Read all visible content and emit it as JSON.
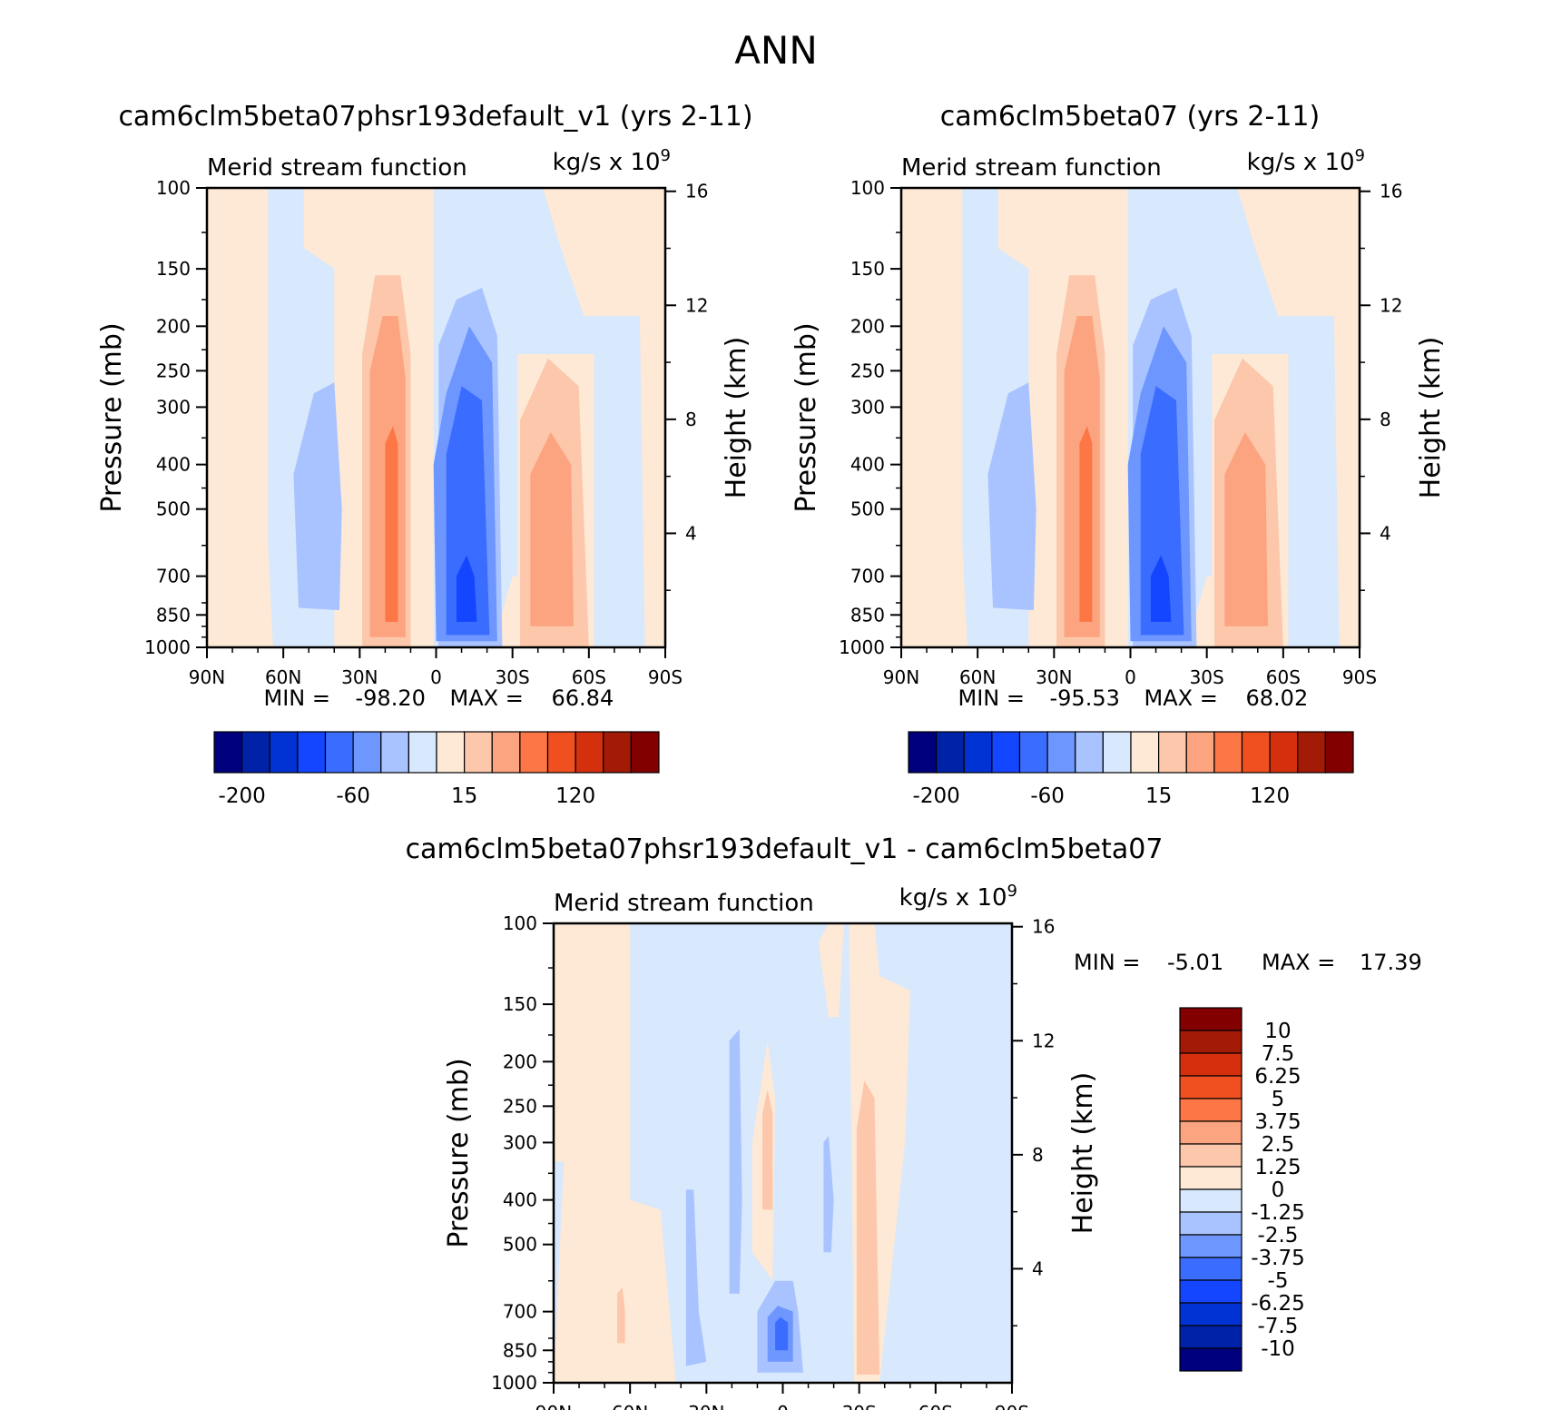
{
  "figure_title": "ANN",
  "colors": {
    "palette": [
      "#00007f",
      "#0022a8",
      "#0032d4",
      "#1446ff",
      "#3a6cff",
      "#6d97ff",
      "#a8c3ff",
      "#d8e8fd",
      "#fde9d6",
      "#fcc7aa",
      "#fca47f",
      "#fc7646",
      "#f04f1f",
      "#d4300e",
      "#a31a06",
      "#820000"
    ],
    "frame": "#000000"
  },
  "panels": [
    {
      "id": "top-left",
      "case_title": "cam6clm5beta07phsr193default_v1 (yrs 2-11)",
      "left_label": "Merid stream function",
      "units": "kg/s x 10",
      "units_exp": "9",
      "min_label": "MIN =",
      "min_value": "-98.20",
      "max_label": "MAX =",
      "max_value": "66.84"
    },
    {
      "id": "top-right",
      "case_title": "cam6clm5beta07 (yrs 2-11)",
      "left_label": "Merid stream function",
      "units": "kg/s x 10",
      "units_exp": "9",
      "min_label": "MIN =",
      "min_value": "-95.53",
      "max_label": "MAX =",
      "max_value": "68.02"
    },
    {
      "id": "bottom",
      "case_title": "cam6clm5beta07phsr193default_v1 - cam6clm5beta07",
      "left_label": "Merid stream function",
      "units": "kg/s x 10",
      "units_exp": "9",
      "min_label": "MIN =",
      "min_value": "-5.01",
      "max_label": "MAX =",
      "max_value": "17.39"
    }
  ],
  "axes": {
    "ylabel_left": "Pressure (mb)",
    "ylabel_right": "Height (km)",
    "pressure_ticks": [
      "100",
      "150",
      "200",
      "250",
      "300",
      "400",
      "500",
      "700",
      "850",
      "1000"
    ],
    "pressure_values": [
      100,
      150,
      200,
      250,
      300,
      400,
      500,
      700,
      850,
      1000
    ],
    "height_ticks": [
      "16",
      "12",
      "8",
      "4"
    ],
    "height_values": [
      16,
      12,
      8,
      4
    ],
    "lat_ticks": [
      "90N",
      "60N",
      "30N",
      "0",
      "30S",
      "60S",
      "90S"
    ],
    "lat_values": [
      90,
      60,
      30,
      0,
      -30,
      -60,
      -90
    ]
  },
  "top_colorbar_labels": [
    "-200",
    "-60",
    "15",
    "120"
  ],
  "bottom_colorbar_labels": [
    "10",
    "7.5",
    "6.25",
    "5",
    "3.75",
    "2.5",
    "1.25",
    "0",
    "-1.25",
    "-2.5",
    "-3.75",
    "-5",
    "-6.25",
    "-7.5",
    "-10"
  ],
  "chart_data": [
    {
      "type": "heatmap",
      "title": "cam6clm5beta07phsr193default_v1 (yrs 2-11)",
      "xlabel": "",
      "ylabel": "Pressure (mb)",
      "ylabel_right": "Height (km)",
      "xlim": [
        90,
        -90
      ],
      "ylim": [
        1000,
        100
      ],
      "yscale": "log",
      "contour_levels": [
        -200,
        -150,
        -100,
        -60,
        -40,
        -20,
        -5,
        0,
        5,
        15,
        40,
        60,
        80,
        120,
        150,
        200
      ],
      "features": [
        {
          "name": "ferrel-cell-north",
          "sign": "negative",
          "lat_range": [
            60,
            35
          ],
          "p_range": [
            850,
            260
          ],
          "peak": -25
        },
        {
          "name": "hadley-cell-north",
          "sign": "positive",
          "lat_range": [
            30,
            8
          ],
          "p_range": [
            1000,
            150
          ],
          "peak": 66.84
        },
        {
          "name": "hadley-cell-south",
          "sign": "negative",
          "lat_range": [
            0,
            -30
          ],
          "p_range": [
            1000,
            150
          ],
          "peak": -98.2
        },
        {
          "name": "ferrel-cell-south",
          "sign": "positive",
          "lat_range": [
            -32,
            -60
          ],
          "p_range": [
            1000,
            240
          ],
          "peak": 45
        }
      ],
      "min": -98.2,
      "max": 66.84
    },
    {
      "type": "heatmap",
      "title": "cam6clm5beta07 (yrs 2-11)",
      "xlabel": "",
      "ylabel": "Pressure (mb)",
      "ylabel_right": "Height (km)",
      "xlim": [
        90,
        -90
      ],
      "ylim": [
        1000,
        100
      ],
      "yscale": "log",
      "contour_levels": [
        -200,
        -150,
        -100,
        -60,
        -40,
        -20,
        -5,
        0,
        5,
        15,
        40,
        60,
        80,
        120,
        150,
        200
      ],
      "features": [
        {
          "name": "ferrel-cell-north",
          "sign": "negative",
          "lat_range": [
            60,
            35
          ],
          "p_range": [
            850,
            260
          ],
          "peak": -25
        },
        {
          "name": "hadley-cell-north",
          "sign": "positive",
          "lat_range": [
            30,
            8
          ],
          "p_range": [
            1000,
            150
          ],
          "peak": 68.02
        },
        {
          "name": "hadley-cell-south",
          "sign": "negative",
          "lat_range": [
            0,
            -30
          ],
          "p_range": [
            1000,
            150
          ],
          "peak": -95.53
        },
        {
          "name": "ferrel-cell-south",
          "sign": "positive",
          "lat_range": [
            -32,
            -60
          ],
          "p_range": [
            1000,
            240
          ],
          "peak": 45
        }
      ],
      "min": -95.53,
      "max": 68.02
    },
    {
      "type": "heatmap",
      "title": "cam6clm5beta07phsr193default_v1 - cam6clm5beta07",
      "xlabel": "",
      "ylabel": "Pressure (mb)",
      "ylabel_right": "Height (km)",
      "xlim": [
        90,
        -90
      ],
      "ylim": [
        1000,
        100
      ],
      "yscale": "log",
      "contour_levels": [
        -10,
        -7.5,
        -6.25,
        -5,
        -3.75,
        -2.5,
        -1.25,
        0,
        1.25,
        2.5,
        3.75,
        5,
        6.25,
        7.5,
        10
      ],
      "features": [
        {
          "name": "diff-negative-core",
          "sign": "negative",
          "lat_range": [
            5,
            -8
          ],
          "p_range": [
            850,
            600
          ],
          "peak": -5.01
        },
        {
          "name": "diff-positive-tower",
          "sign": "positive",
          "lat_range": [
            -28,
            -38
          ],
          "p_range": [
            950,
            130
          ],
          "peak": 2.5
        },
        {
          "name": "diff-positive-upper",
          "sign": "positive",
          "lat_range": [
            8,
            -2
          ],
          "p_range": [
            350,
            200
          ],
          "peak": 2.0
        }
      ],
      "min": -5.01,
      "max": 17.39
    }
  ]
}
